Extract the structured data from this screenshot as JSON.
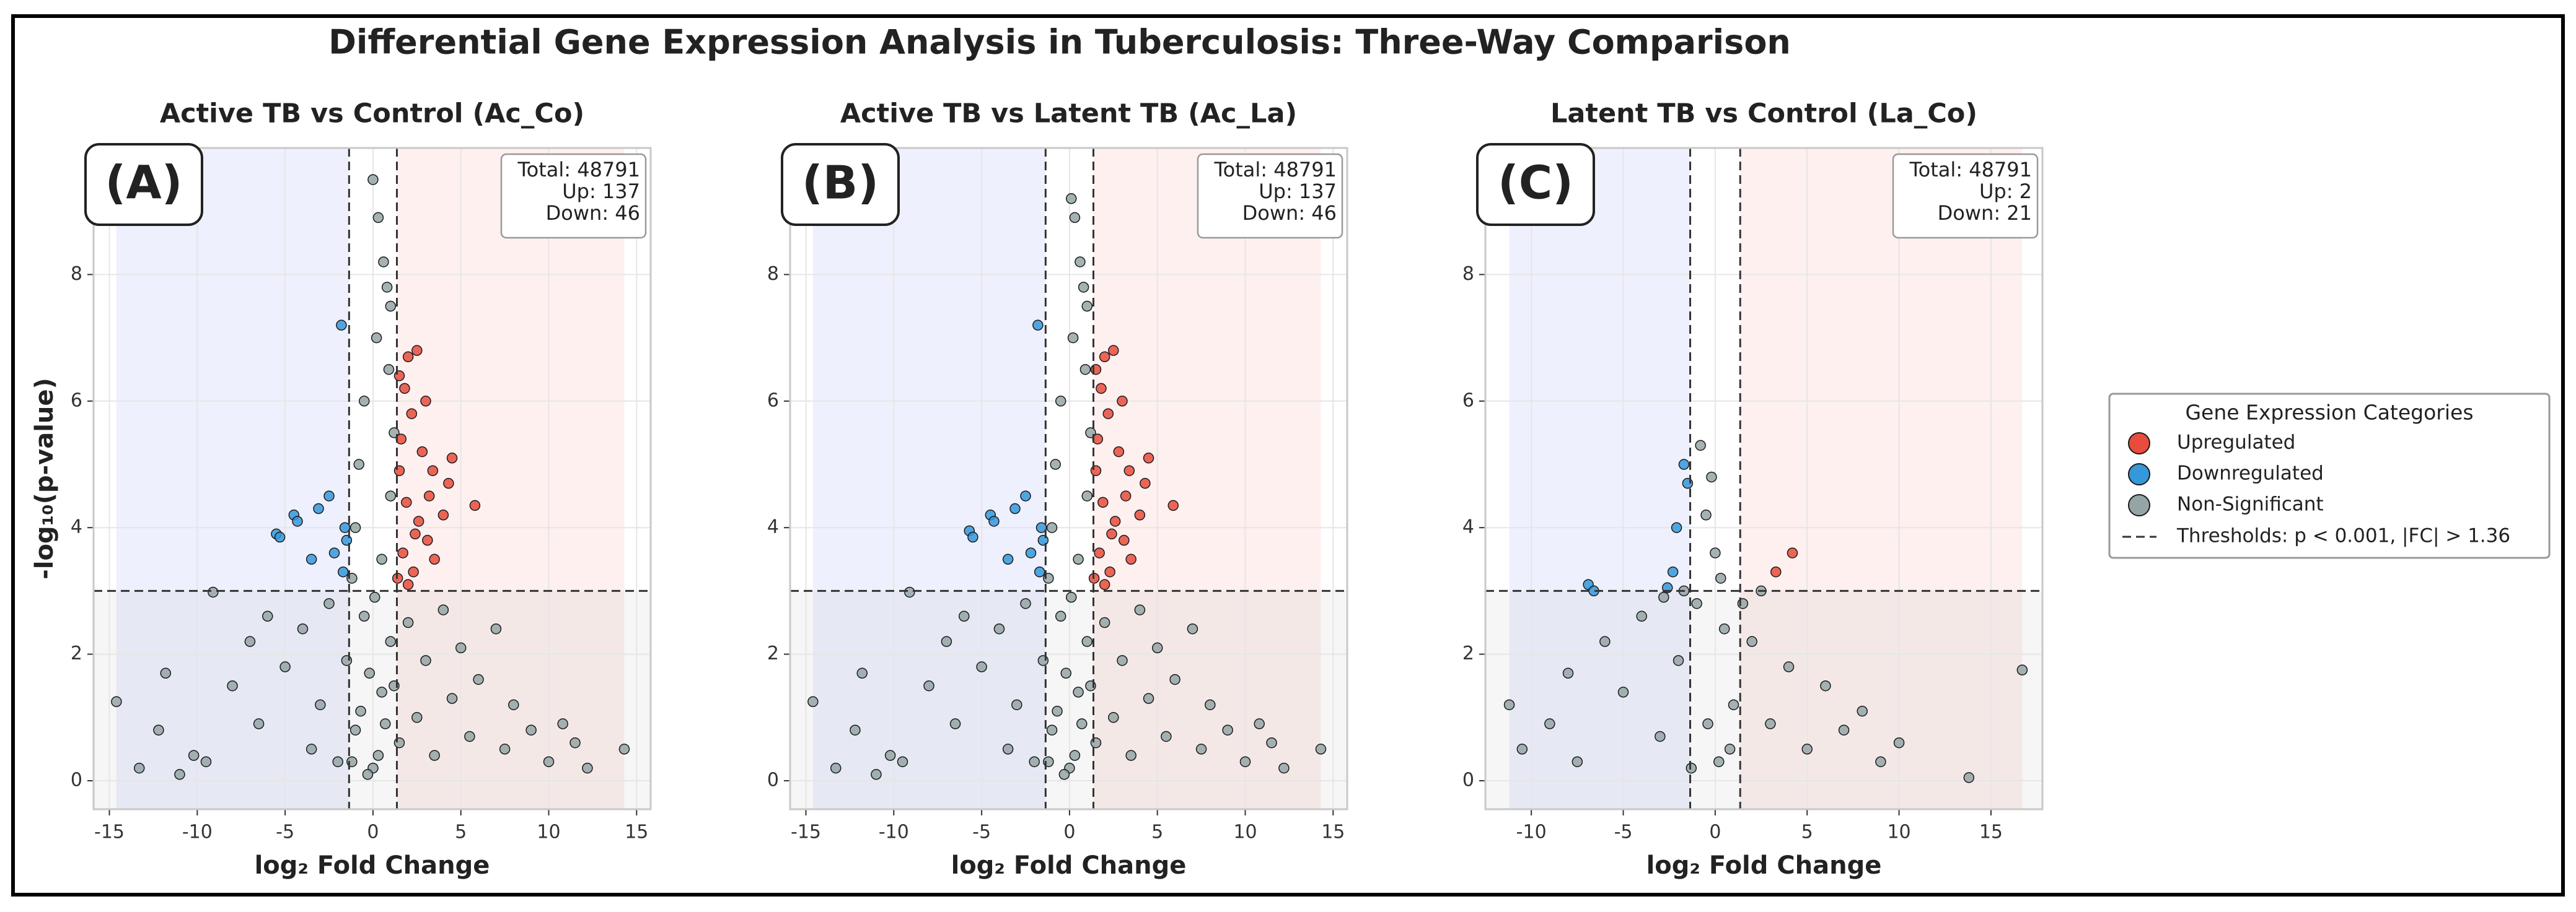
{
  "title": "Differential Gene Expression Analysis in Tuberculosis: Three-Way Comparison",
  "legend": {
    "title": "Gene Expression Categories",
    "threshold_label": "Thresholds: p < 0.001, |FC| > 1.36"
  },
  "chart_data": [
    {
      "type": "scatter",
      "title": "Active TB vs Control (Ac_Co)",
      "panel_label": "(A)",
      "x_label": "log₂ Fold Change",
      "y_label": "-log₁₀(p-value)",
      "annotations": [
        "Total: 48791",
        "Up: 137",
        "Down: 46"
      ],
      "xlim": [
        -15.9,
        15.8
      ],
      "ylim": [
        -0.45,
        10
      ],
      "xticks": [
        -15,
        -10,
        -5,
        0,
        5,
        10,
        15
      ],
      "yticks": [
        0,
        2,
        4,
        6,
        8
      ],
      "grid": true,
      "xthresholds": [
        -1.36,
        1.36
      ],
      "ythreshold": 3,
      "series": [
        {
          "name": "Upregulated",
          "color": "#e74c3c",
          "x": [
            1.5,
            2.0,
            2.5,
            1.8,
            2.2,
            3.0,
            1.6,
            2.8,
            3.4,
            4.5,
            4.3,
            5.8,
            1.9,
            2.6,
            3.1,
            1.7,
            2.3,
            3.5,
            2.0,
            4.0,
            1.5,
            2.4,
            3.2,
            1.4
          ],
          "y": [
            6.4,
            6.7,
            6.8,
            6.2,
            5.8,
            6.0,
            5.4,
            5.2,
            4.9,
            5.1,
            4.7,
            4.35,
            4.4,
            4.1,
            3.8,
            3.6,
            3.3,
            3.5,
            3.1,
            4.2,
            4.9,
            3.9,
            4.5,
            3.2
          ]
        },
        {
          "name": "Downregulated",
          "color": "#3498db",
          "x": [
            -5.5,
            -5.3,
            -4.5,
            -4.3,
            -3.1,
            -2.5,
            -3.5,
            -2.2,
            -1.7,
            -1.5,
            -1.8,
            -1.6
          ],
          "y": [
            3.9,
            3.85,
            4.2,
            4.1,
            4.3,
            4.5,
            3.5,
            3.6,
            3.3,
            3.8,
            7.2,
            4.0
          ]
        },
        {
          "name": "Non-Significant",
          "color": "#95a5a6",
          "x": [
            0,
            0.3,
            0.6,
            0.8,
            1.0,
            0.2,
            0.9,
            -0.5,
            1.2,
            -0.8,
            1.0,
            -1.0,
            0.5,
            -1.2,
            -14.6,
            -13.3,
            -12.2,
            -11.8,
            -11,
            -10.2,
            -9.5,
            -9.1,
            -8,
            -7,
            -6.5,
            -6,
            -5,
            -4,
            -3.5,
            -3,
            -2.5,
            -2,
            -1.5,
            -1,
            -0.5,
            0,
            0.5,
            1,
            1.5,
            2,
            2.5,
            3,
            3.5,
            4,
            4.5,
            5,
            5.5,
            6,
            7,
            7.5,
            8,
            9,
            10,
            10.8,
            11.5,
            12.2,
            14.3,
            -0.3,
            0.3,
            -0.7,
            0.7,
            -1.2,
            1.2,
            0.1,
            -0.2
          ],
          "y": [
            9.5,
            8.9,
            8.2,
            7.8,
            7.5,
            7.0,
            6.5,
            6.0,
            5.5,
            5.0,
            4.5,
            4.0,
            3.5,
            3.2,
            1.25,
            0.2,
            0.8,
            1.7,
            0.1,
            0.4,
            0.3,
            2.98,
            1.5,
            2.2,
            0.9,
            2.6,
            1.8,
            2.4,
            0.5,
            1.2,
            2.8,
            0.3,
            1.9,
            0.8,
            2.6,
            0.2,
            1.4,
            2.2,
            0.6,
            2.5,
            1.0,
            1.9,
            0.4,
            2.7,
            1.3,
            2.1,
            0.7,
            1.6,
            2.4,
            0.5,
            1.2,
            0.8,
            0.3,
            0.9,
            0.6,
            0.2,
            0.5,
            0.1,
            0.4,
            1.1,
            0.9,
            0.3,
            1.5,
            2.9,
            1.7
          ]
        }
      ]
    },
    {
      "type": "scatter",
      "title": "Active TB vs Latent TB (Ac_La)",
      "panel_label": "(B)",
      "x_label": "log₂ Fold Change",
      "annotations": [
        "Total: 48791",
        "Up: 137",
        "Down: 46"
      ],
      "xlim": [
        -15.9,
        15.8
      ],
      "ylim": [
        -0.45,
        10
      ],
      "xticks": [
        -15,
        -10,
        -5,
        0,
        5,
        10,
        15
      ],
      "yticks": [
        0,
        2,
        4,
        6,
        8
      ],
      "grid": true,
      "xthresholds": [
        -1.36,
        1.36
      ],
      "ythreshold": 3,
      "series": [
        {
          "name": "Upregulated",
          "color": "#e74c3c",
          "x": [
            1.5,
            2.0,
            2.5,
            1.8,
            2.2,
            3.0,
            1.6,
            2.8,
            3.4,
            4.5,
            4.3,
            5.9,
            1.9,
            2.6,
            3.1,
            1.7,
            2.3,
            3.5,
            2.0,
            4.0,
            1.5,
            2.4,
            3.2,
            1.4
          ],
          "y": [
            6.5,
            6.7,
            6.8,
            6.2,
            5.8,
            6.0,
            5.4,
            5.2,
            4.9,
            5.1,
            4.7,
            4.35,
            4.4,
            4.1,
            3.8,
            3.6,
            3.3,
            3.5,
            3.1,
            4.2,
            4.9,
            3.9,
            4.5,
            3.2
          ]
        },
        {
          "name": "Downregulated",
          "color": "#3498db",
          "x": [
            -5.7,
            -5.5,
            -4.5,
            -4.3,
            -3.1,
            -2.5,
            -3.5,
            -2.2,
            -1.7,
            -1.5,
            -1.8,
            -1.6
          ],
          "y": [
            3.95,
            3.85,
            4.2,
            4.1,
            4.3,
            4.5,
            3.5,
            3.6,
            3.3,
            3.8,
            7.2,
            4.0
          ]
        },
        {
          "name": "Non-Significant",
          "color": "#95a5a6",
          "x": [
            0.1,
            0.3,
            0.6,
            0.8,
            1.0,
            0.2,
            0.9,
            -0.5,
            1.2,
            -0.8,
            1.0,
            -1.0,
            0.5,
            -1.2,
            -14.6,
            -13.3,
            -12.2,
            -11.8,
            -11,
            -10.2,
            -9.5,
            -9.1,
            -8,
            -7,
            -6.5,
            -6,
            -5,
            -4,
            -3.5,
            -3,
            -2.5,
            -2,
            -1.5,
            -1,
            -0.5,
            0,
            0.5,
            1,
            1.5,
            2,
            2.5,
            3,
            3.5,
            4,
            4.5,
            5,
            5.5,
            6,
            7,
            7.5,
            8,
            9,
            10,
            10.8,
            11.5,
            12.2,
            14.3,
            -0.3,
            0.3,
            -0.7,
            0.7,
            -1.2,
            1.2,
            0.1,
            -0.2
          ],
          "y": [
            9.2,
            8.9,
            8.2,
            7.8,
            7.5,
            7.0,
            6.5,
            6.0,
            5.5,
            5.0,
            4.5,
            4.0,
            3.5,
            3.2,
            1.25,
            0.2,
            0.8,
            1.7,
            0.1,
            0.4,
            0.3,
            2.98,
            1.5,
            2.2,
            0.9,
            2.6,
            1.8,
            2.4,
            0.5,
            1.2,
            2.8,
            0.3,
            1.9,
            0.8,
            2.6,
            0.2,
            1.4,
            2.2,
            0.6,
            2.5,
            1.0,
            1.9,
            0.4,
            2.7,
            1.3,
            2.1,
            0.7,
            1.6,
            2.4,
            0.5,
            1.2,
            0.8,
            0.3,
            0.9,
            0.6,
            0.2,
            0.5,
            0.1,
            0.4,
            1.1,
            0.9,
            0.3,
            1.5,
            2.9,
            1.7
          ]
        }
      ]
    },
    {
      "type": "scatter",
      "title": "Latent TB vs Control (La_Co)",
      "panel_label": "(C)",
      "x_label": "log₂ Fold Change",
      "annotations": [
        "Total: 48791",
        "Up: 2",
        "Down: 21"
      ],
      "xlim": [
        -12.5,
        17.8
      ],
      "ylim": [
        -0.45,
        10
      ],
      "xticks": [
        -10,
        -5,
        0,
        5,
        10,
        15
      ],
      "yticks": [
        0,
        2,
        4,
        6,
        8
      ],
      "grid": true,
      "xthresholds": [
        -1.36,
        1.36
      ],
      "ythreshold": 3,
      "series": [
        {
          "name": "Upregulated",
          "color": "#e74c3c",
          "x": [
            4.2,
            3.3
          ],
          "y": [
            3.6,
            3.3
          ]
        },
        {
          "name": "Downregulated",
          "color": "#3498db",
          "x": [
            -1.7,
            -1.5,
            -2.1,
            -6.9,
            -6.6,
            -2.3,
            -2.6
          ],
          "y": [
            5.0,
            4.7,
            4.0,
            3.1,
            3.0,
            3.3,
            3.05
          ]
        },
        {
          "name": "Non-Significant",
          "color": "#95a5a6",
          "x": [
            -11.2,
            -10.5,
            -9,
            -8,
            -7.5,
            -6,
            -5,
            -4,
            -3,
            -2,
            -1,
            -0.5,
            0,
            0.3,
            -0.2,
            0.5,
            1,
            2,
            3,
            4,
            5,
            6,
            7,
            8,
            9,
            10,
            13.8,
            16.7,
            0.2,
            -0.4,
            0.8,
            -1.3,
            1.5,
            -1.7,
            2.5,
            -2.8,
            -0.8
          ],
          "y": [
            1.2,
            0.5,
            0.9,
            1.7,
            0.3,
            2.2,
            1.4,
            2.6,
            0.7,
            1.9,
            2.8,
            4.2,
            3.6,
            3.2,
            4.8,
            2.4,
            1.2,
            2.2,
            0.9,
            1.8,
            0.5,
            1.5,
            0.8,
            1.1,
            0.3,
            0.6,
            0.05,
            1.75,
            0.3,
            0.9,
            0.5,
            0.2,
            2.8,
            3.0,
            3.0,
            2.9,
            5.3
          ]
        }
      ]
    }
  ]
}
